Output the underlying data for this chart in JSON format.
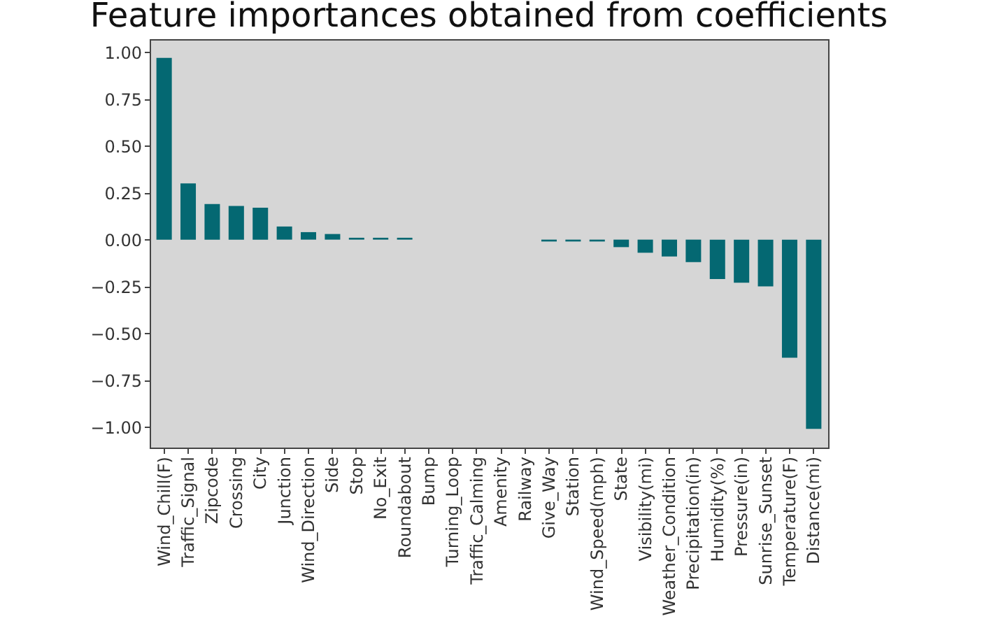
{
  "chart_data": {
    "type": "bar",
    "title": "Feature importances obtained from coefficients",
    "categories": [
      "Wind_Chill(F)",
      "Traffic_Signal",
      "Zipcode",
      "Crossing",
      "City",
      "Junction",
      "Wind_Direction",
      "Side",
      "Stop",
      "No_Exit",
      "Roundabout",
      "Bump",
      "Turning_Loop",
      "Traffic_Calming",
      "Amenity",
      "Railway",
      "Give_Way",
      "Station",
      "Wind_Speed(mph)",
      "State",
      "Visibility(mi)",
      "Weather_Condition",
      "Precipitation(in)",
      "Humidity(%)",
      "Pressure(in)",
      "Sunrise_Sunset",
      "Temperature(F)",
      "Distance(mi)"
    ],
    "values": [
      0.97,
      0.3,
      0.19,
      0.18,
      0.17,
      0.07,
      0.04,
      0.03,
      0.01,
      0.01,
      0.01,
      0,
      0,
      0,
      0,
      0,
      -0.01,
      -0.01,
      -0.01,
      -0.04,
      -0.07,
      -0.09,
      -0.12,
      -0.21,
      -0.23,
      -0.25,
      -0.63,
      -1.01
    ],
    "color": "#046872",
    "ylim": [
      -1.11,
      1.07
    ],
    "yticks": [
      {
        "value": -1,
        "label": "−1.00"
      },
      {
        "value": -0.75,
        "label": "−0.75"
      },
      {
        "value": -0.5,
        "label": "−0.50"
      },
      {
        "value": -0.25,
        "label": "−0.25"
      },
      {
        "value": 0,
        "label": "0.00"
      },
      {
        "value": 0.25,
        "label": "0.25"
      },
      {
        "value": 0.5,
        "label": "0.50"
      },
      {
        "value": 0.75,
        "label": "0.75"
      },
      {
        "value": 1,
        "label": "1.00"
      }
    ]
  }
}
